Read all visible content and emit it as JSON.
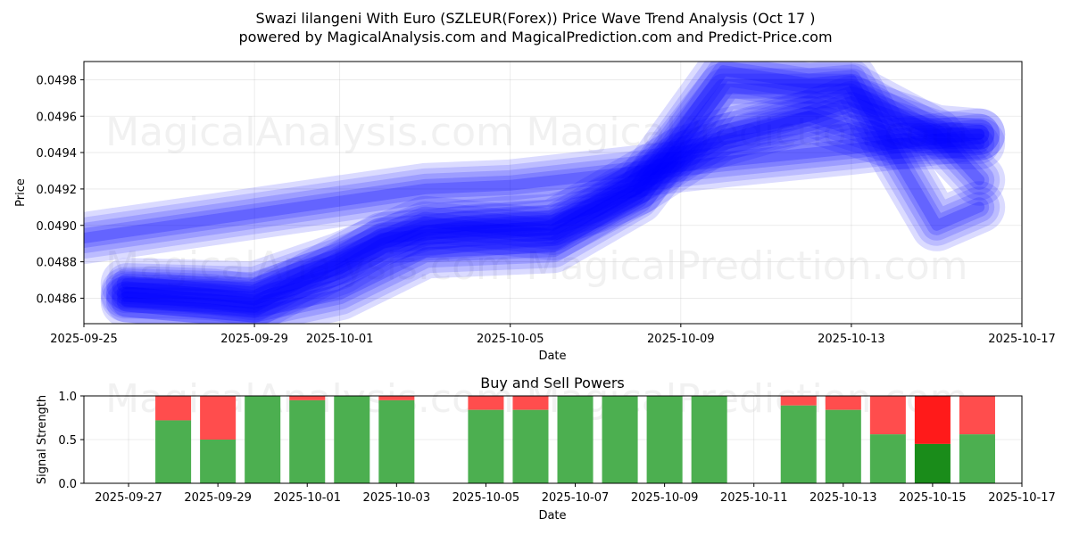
{
  "title_line1": "Swazi lilangeni With Euro (SZLEUR(Forex)) Price Wave Trend Analysis (Oct 17 )",
  "title_line2": "powered by MagicalAnalysis.com and MagicalPrediction.com and Predict-Price.com",
  "watermarks": [
    "MagicalAnalysis.com",
    "MagicalPrediction.com",
    "MagicalAnalysis.com",
    "MagicalPrediction.com",
    "MagicalAnalysis.com",
    "MagicalPrediction.com"
  ],
  "colors": {
    "wave": "#0000ff",
    "buy": "#4caf50",
    "sell": "#ff4d4d",
    "buy_strong": "#1a8c1a",
    "sell_strong": "#ff1a1a"
  },
  "chart_data": [
    {
      "type": "area",
      "title": "",
      "xlabel": "Date",
      "ylabel": "Price",
      "xlim": [
        "2025-09-25",
        "2025-10-17"
      ],
      "ylim": [
        0.04846,
        0.0499
      ],
      "x_ticks": [
        "2025-09-25",
        "2025-09-29",
        "2025-10-01",
        "2025-10-05",
        "2025-10-09",
        "2025-10-13",
        "2025-10-17"
      ],
      "y_ticks": [
        0.0486,
        0.0488,
        0.049,
        0.0492,
        0.0494,
        0.0496,
        0.0498
      ],
      "grid": true,
      "series": [
        {
          "x": [
            "2025-09-26",
            "2025-09-27",
            "2025-09-28",
            "2025-09-29",
            "2025-09-30",
            "2025-10-01",
            "2025-10-02",
            "2025-10-03",
            "2025-10-04",
            "2025-10-05",
            "2025-10-06",
            "2025-10-07",
            "2025-10-08",
            "2025-10-09",
            "2025-10-10",
            "2025-10-11",
            "2025-10-12",
            "2025-10-13",
            "2025-10-14",
            "2025-10-15",
            "2025-10-16"
          ],
          "values": [
            0.04863,
            0.04863,
            0.04862,
            0.04859,
            0.04868,
            0.04876,
            0.0489,
            0.04897,
            0.049,
            0.04902,
            0.04903,
            0.0491,
            0.0492,
            0.04935,
            0.0495,
            0.04955,
            0.0496,
            0.04968,
            0.0496,
            0.04952,
            0.0495
          ]
        },
        {
          "x": [
            "2025-09-25",
            "2025-10-03",
            "2025-10-05",
            "2025-10-10",
            "2025-10-13",
            "2025-10-16"
          ],
          "values": [
            0.04893,
            0.0492,
            0.04922,
            0.04935,
            0.04942,
            0.0495
          ]
        },
        {
          "x": [
            "2025-09-26",
            "2025-09-29",
            "2025-10-01",
            "2025-10-03",
            "2025-10-06",
            "2025-10-08",
            "2025-10-10",
            "2025-10-13",
            "2025-10-15",
            "2025-10-16"
          ],
          "values": [
            0.04858,
            0.04852,
            0.04862,
            0.04885,
            0.04888,
            0.04915,
            0.04975,
            0.04975,
            0.0495,
            0.04925
          ]
        },
        {
          "x": [
            "2025-09-26",
            "2025-09-29",
            "2025-10-01",
            "2025-10-03",
            "2025-10-06",
            "2025-10-08",
            "2025-10-10",
            "2025-10-12",
            "2025-10-13",
            "2025-10-15",
            "2025-10-16"
          ],
          "values": [
            0.04868,
            0.04866,
            0.04882,
            0.04902,
            0.04895,
            0.0492,
            0.04985,
            0.04978,
            0.0498,
            0.049,
            0.0491
          ]
        },
        {
          "x": [
            "2025-09-26",
            "2025-09-29",
            "2025-10-02",
            "2025-10-06",
            "2025-10-09",
            "2025-10-12",
            "2025-10-14",
            "2025-10-16"
          ],
          "values": [
            0.04861,
            0.04855,
            0.04893,
            0.049,
            0.0494,
            0.0496,
            0.04945,
            0.04945
          ]
        }
      ]
    },
    {
      "type": "bar",
      "title": "Buy and Sell Powers",
      "xlabel": "Date",
      "ylabel": "Signal Strength",
      "xlim": [
        "2025-09-26",
        "2025-10-17"
      ],
      "ylim": [
        0,
        1
      ],
      "x_ticks": [
        "2025-09-27",
        "2025-09-29",
        "2025-10-01",
        "2025-10-03",
        "2025-10-05",
        "2025-10-07",
        "2025-10-09",
        "2025-10-11",
        "2025-10-13",
        "2025-10-15",
        "2025-10-17"
      ],
      "y_ticks": [
        "0.0",
        "0.5",
        "1.0"
      ],
      "categories": [
        "2025-09-28",
        "2025-09-29",
        "2025-09-30",
        "2025-10-01",
        "2025-10-02",
        "2025-10-03",
        "2025-10-05",
        "2025-10-06",
        "2025-10-07",
        "2025-10-08",
        "2025-10-09",
        "2025-10-10",
        "2025-10-12",
        "2025-10-13",
        "2025-10-14",
        "2025-10-15",
        "2025-10-16"
      ],
      "buy": [
        0.72,
        0.5,
        1.0,
        0.95,
        1.0,
        0.95,
        0.84,
        0.84,
        1.0,
        1.0,
        1.0,
        1.0,
        0.89,
        0.84,
        0.56,
        0.45,
        0.56
      ],
      "strong": [
        false,
        false,
        false,
        false,
        false,
        false,
        false,
        false,
        false,
        false,
        false,
        false,
        false,
        false,
        false,
        true,
        false
      ]
    }
  ]
}
